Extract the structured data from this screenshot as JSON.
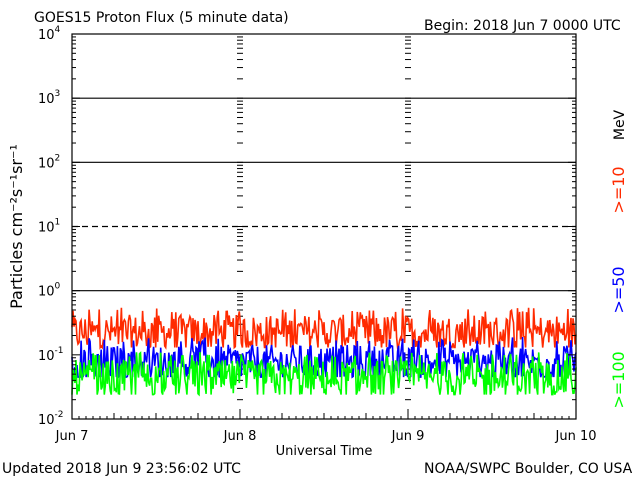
{
  "header": {
    "title": "GOES15 Proton Flux (5 minute data)",
    "begin": "Begin: 2018 Jun 7 0000 UTC"
  },
  "footer": {
    "updated": "Updated 2018 Jun  9 23:56:02 UTC",
    "credit": "NOAA/SWPC Boulder, CO USA"
  },
  "chart_data": {
    "type": "line",
    "title": "GOES15 Proton Flux (5 minute data)",
    "xlabel": "Universal Time",
    "ylabel": "Particles cm⁻²s⁻¹sr⁻¹",
    "y_scale": "log",
    "ylim": [
      0.01,
      10000
    ],
    "y_ticks": [
      {
        "value": 0.01,
        "base": "10",
        "exp": "-2"
      },
      {
        "value": 0.1,
        "base": "10",
        "exp": "-1"
      },
      {
        "value": 1,
        "base": "10",
        "exp": "0"
      },
      {
        "value": 10,
        "base": "10",
        "exp": "1"
      },
      {
        "value": 100,
        "base": "10",
        "exp": "2"
      },
      {
        "value": 1000,
        "base": "10",
        "exp": "3"
      },
      {
        "value": 10000,
        "base": "10",
        "exp": "4"
      }
    ],
    "x_range": [
      "2018-06-07",
      "2018-06-10"
    ],
    "x_ticks": [
      "Jun 7",
      "Jun 8",
      "Jun 9",
      "Jun 10"
    ],
    "reference_lines": [
      {
        "value": 10,
        "style": "dashed"
      },
      {
        "value": 1,
        "style": "solid"
      },
      {
        "value": 100,
        "style": "solid"
      },
      {
        "value": 1000,
        "style": "solid"
      }
    ],
    "unit_label": "MeV",
    "series": [
      {
        "name": ">=10",
        "color": "#ff2a00",
        "typical": 0.22,
        "min": 0.13,
        "max": 0.55
      },
      {
        "name": ">=50",
        "color": "#0000ff",
        "typical": 0.075,
        "min": 0.045,
        "max": 0.19
      },
      {
        "name": ">=100",
        "color": "#00ff00",
        "typical": 0.042,
        "min": 0.024,
        "max": 0.11
      }
    ]
  }
}
